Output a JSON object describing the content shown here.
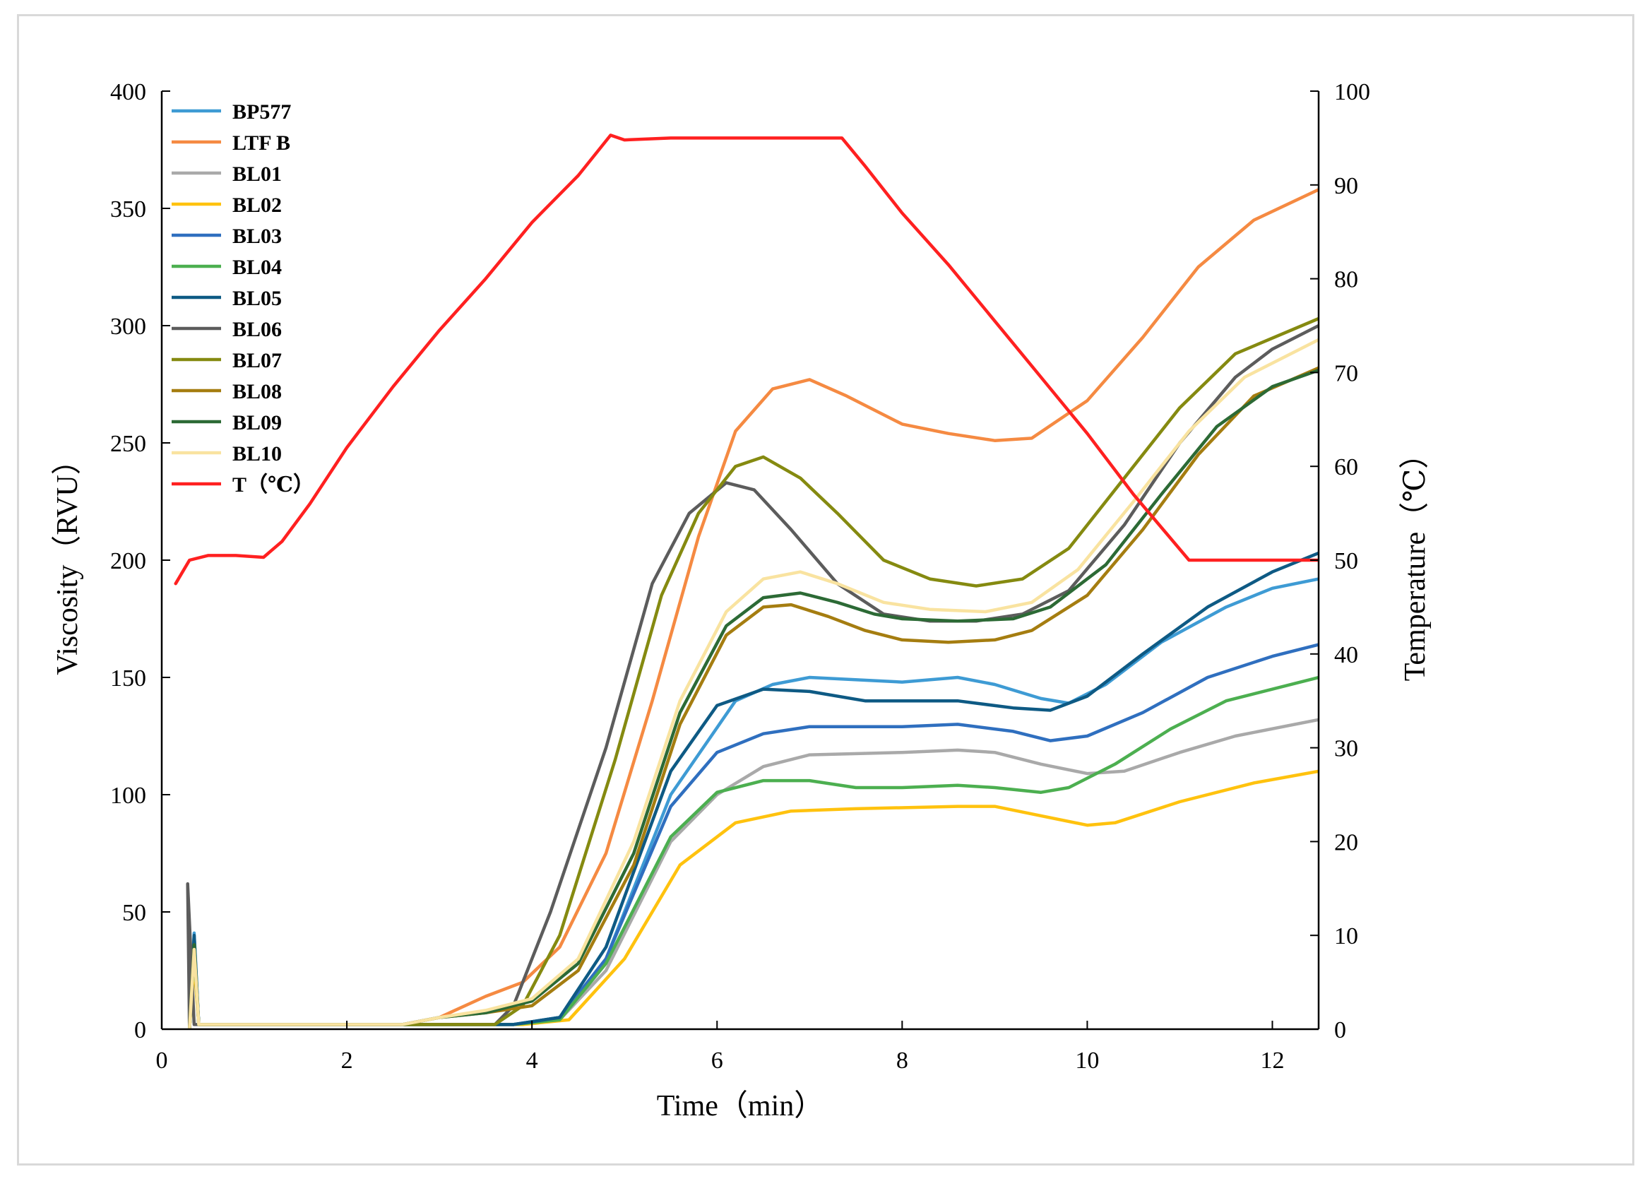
{
  "chart_data": {
    "type": "line",
    "xlabel": "Time（min）",
    "ylabel_left": "Viscosity（RVU）",
    "ylabel_right": "Temperature（℃）",
    "xlim": [
      0,
      12.5
    ],
    "ylim_left": [
      0,
      400
    ],
    "ylim_right": [
      0,
      100
    ],
    "x_ticks": [
      "0",
      "2",
      "4",
      "6",
      "8",
      "10",
      "12"
    ],
    "y_left_ticks": [
      "0",
      "50",
      "100",
      "150",
      "200",
      "250",
      "300",
      "350",
      "400"
    ],
    "y_right_ticks": [
      "0",
      "10",
      "20",
      "30",
      "40",
      "50",
      "60",
      "70",
      "80",
      "90",
      "100"
    ],
    "grid": false,
    "legend_position": "top-left",
    "series": [
      {
        "name": "BP577",
        "color": "#3e9bd4",
        "axis": "left",
        "points": [
          [
            0.3,
            0
          ],
          [
            0.35,
            41
          ],
          [
            0.4,
            2
          ],
          [
            3.8,
            2
          ],
          [
            4.3,
            5
          ],
          [
            4.8,
            30
          ],
          [
            5.5,
            100
          ],
          [
            6.2,
            140
          ],
          [
            6.6,
            147
          ],
          [
            7,
            150
          ],
          [
            8,
            148
          ],
          [
            8.6,
            150
          ],
          [
            9,
            147
          ],
          [
            9.5,
            141
          ],
          [
            9.8,
            139
          ],
          [
            10.2,
            147
          ],
          [
            10.8,
            165
          ],
          [
            11.5,
            180
          ],
          [
            12,
            188
          ],
          [
            12.5,
            192
          ]
        ]
      },
      {
        "name": "LTF B",
        "color": "#f58a42",
        "axis": "left",
        "points": [
          [
            0.3,
            0
          ],
          [
            0.35,
            35
          ],
          [
            0.4,
            2
          ],
          [
            2.6,
            2
          ],
          [
            3,
            5
          ],
          [
            3.5,
            14
          ],
          [
            3.9,
            20
          ],
          [
            4.3,
            35
          ],
          [
            4.8,
            75
          ],
          [
            5.3,
            140
          ],
          [
            5.8,
            210
          ],
          [
            6.2,
            255
          ],
          [
            6.6,
            273
          ],
          [
            7,
            277
          ],
          [
            7.4,
            270
          ],
          [
            8,
            258
          ],
          [
            8.5,
            254
          ],
          [
            9,
            251
          ],
          [
            9.4,
            252
          ],
          [
            10,
            268
          ],
          [
            10.6,
            295
          ],
          [
            11.2,
            325
          ],
          [
            11.8,
            345
          ],
          [
            12.5,
            358
          ]
        ]
      },
      {
        "name": "BL01",
        "color": "#a9a9a9",
        "axis": "left",
        "points": [
          [
            0.3,
            0
          ],
          [
            0.35,
            30
          ],
          [
            0.4,
            2
          ],
          [
            3.8,
            2
          ],
          [
            4.3,
            4
          ],
          [
            4.8,
            25
          ],
          [
            5.5,
            80
          ],
          [
            6,
            100
          ],
          [
            6.5,
            112
          ],
          [
            7,
            117
          ],
          [
            8,
            118
          ],
          [
            8.6,
            119
          ],
          [
            9,
            118
          ],
          [
            9.5,
            113
          ],
          [
            10,
            109
          ],
          [
            10.4,
            110
          ],
          [
            11,
            118
          ],
          [
            11.6,
            125
          ],
          [
            12.5,
            132
          ]
        ]
      },
      {
        "name": "BL02",
        "color": "#ffc20e",
        "axis": "left",
        "points": [
          [
            0.3,
            0
          ],
          [
            0.35,
            28
          ],
          [
            0.4,
            2
          ],
          [
            3.9,
            2
          ],
          [
            4.4,
            4
          ],
          [
            5,
            30
          ],
          [
            5.6,
            70
          ],
          [
            6.2,
            88
          ],
          [
            6.8,
            93
          ],
          [
            7.5,
            94
          ],
          [
            8.6,
            95
          ],
          [
            9,
            95
          ],
          [
            9.5,
            91
          ],
          [
            10,
            87
          ],
          [
            10.3,
            88
          ],
          [
            11,
            97
          ],
          [
            11.8,
            105
          ],
          [
            12.5,
            110
          ]
        ]
      },
      {
        "name": "BL03",
        "color": "#2f6fbf",
        "axis": "left",
        "points": [
          [
            0.3,
            0
          ],
          [
            0.35,
            38
          ],
          [
            0.4,
            2
          ],
          [
            3.8,
            2
          ],
          [
            4.3,
            5
          ],
          [
            4.8,
            30
          ],
          [
            5.5,
            95
          ],
          [
            6,
            118
          ],
          [
            6.5,
            126
          ],
          [
            7,
            129
          ],
          [
            8,
            129
          ],
          [
            8.6,
            130
          ],
          [
            9.2,
            127
          ],
          [
            9.6,
            123
          ],
          [
            10,
            125
          ],
          [
            10.6,
            135
          ],
          [
            11.3,
            150
          ],
          [
            12,
            159
          ],
          [
            12.5,
            164
          ]
        ]
      },
      {
        "name": "BL04",
        "color": "#4caf50",
        "axis": "left",
        "points": [
          [
            0.3,
            0
          ],
          [
            0.35,
            33
          ],
          [
            0.4,
            2
          ],
          [
            3.8,
            2
          ],
          [
            4.3,
            4
          ],
          [
            4.8,
            28
          ],
          [
            5.5,
            82
          ],
          [
            6,
            101
          ],
          [
            6.5,
            106
          ],
          [
            7,
            106
          ],
          [
            7.5,
            103
          ],
          [
            8,
            103
          ],
          [
            8.6,
            104
          ],
          [
            9,
            103
          ],
          [
            9.5,
            101
          ],
          [
            9.8,
            103
          ],
          [
            10.3,
            113
          ],
          [
            10.9,
            128
          ],
          [
            11.5,
            140
          ],
          [
            12.5,
            150
          ]
        ]
      },
      {
        "name": "BL05",
        "color": "#0e5a84",
        "axis": "left",
        "points": [
          [
            0.3,
            0
          ],
          [
            0.35,
            40
          ],
          [
            0.4,
            2
          ],
          [
            3.8,
            2
          ],
          [
            4.3,
            5
          ],
          [
            4.8,
            35
          ],
          [
            5.5,
            110
          ],
          [
            6,
            138
          ],
          [
            6.5,
            145
          ],
          [
            7,
            144
          ],
          [
            7.6,
            140
          ],
          [
            8,
            140
          ],
          [
            8.6,
            140
          ],
          [
            9.2,
            137
          ],
          [
            9.6,
            136
          ],
          [
            10,
            142
          ],
          [
            10.6,
            160
          ],
          [
            11.3,
            180
          ],
          [
            12,
            195
          ],
          [
            12.5,
            203
          ]
        ]
      },
      {
        "name": "BL06",
        "color": "#5c5c5c",
        "axis": "left",
        "points": [
          [
            0.3,
            0
          ],
          [
            0.28,
            62
          ],
          [
            0.35,
            2
          ],
          [
            3.6,
            2
          ],
          [
            3.8,
            10
          ],
          [
            4.2,
            50
          ],
          [
            4.8,
            120
          ],
          [
            5.3,
            190
          ],
          [
            5.7,
            220
          ],
          [
            6.1,
            233
          ],
          [
            6.4,
            230
          ],
          [
            6.8,
            213
          ],
          [
            7.3,
            190
          ],
          [
            7.8,
            177
          ],
          [
            8.3,
            174
          ],
          [
            8.8,
            174
          ],
          [
            9.3,
            177
          ],
          [
            9.8,
            187
          ],
          [
            10.4,
            215
          ],
          [
            11,
            250
          ],
          [
            11.6,
            278
          ],
          [
            12,
            290
          ],
          [
            12.5,
            300
          ]
        ]
      },
      {
        "name": "BL07",
        "color": "#858a10",
        "axis": "left",
        "points": [
          [
            0.3,
            0
          ],
          [
            0.35,
            36
          ],
          [
            0.4,
            2
          ],
          [
            3.6,
            2
          ],
          [
            3.9,
            10
          ],
          [
            4.3,
            40
          ],
          [
            4.9,
            115
          ],
          [
            5.4,
            185
          ],
          [
            5.8,
            220
          ],
          [
            6.2,
            240
          ],
          [
            6.5,
            244
          ],
          [
            6.9,
            235
          ],
          [
            7.3,
            220
          ],
          [
            7.8,
            200
          ],
          [
            8.3,
            192
          ],
          [
            8.8,
            189
          ],
          [
            9.3,
            192
          ],
          [
            9.8,
            205
          ],
          [
            10.4,
            235
          ],
          [
            11,
            265
          ],
          [
            11.6,
            288
          ],
          [
            12.5,
            303
          ]
        ]
      },
      {
        "name": "BL08",
        "color": "#a57d10",
        "axis": "left",
        "points": [
          [
            0.3,
            0
          ],
          [
            0.35,
            35
          ],
          [
            0.4,
            2
          ],
          [
            2.6,
            2
          ],
          [
            3,
            5
          ],
          [
            3.5,
            7
          ],
          [
            4,
            10
          ],
          [
            4.5,
            25
          ],
          [
            5.1,
            70
          ],
          [
            5.6,
            130
          ],
          [
            6.1,
            168
          ],
          [
            6.5,
            180
          ],
          [
            6.8,
            181
          ],
          [
            7.2,
            176
          ],
          [
            7.6,
            170
          ],
          [
            8,
            166
          ],
          [
            8.5,
            165
          ],
          [
            9,
            166
          ],
          [
            9.4,
            170
          ],
          [
            10,
            185
          ],
          [
            10.6,
            213
          ],
          [
            11.2,
            245
          ],
          [
            11.8,
            270
          ],
          [
            12.5,
            282
          ]
        ]
      },
      {
        "name": "BL09",
        "color": "#2c6a35",
        "axis": "left",
        "points": [
          [
            0.3,
            0
          ],
          [
            0.35,
            36
          ],
          [
            0.4,
            2
          ],
          [
            2.6,
            2
          ],
          [
            3,
            5
          ],
          [
            3.5,
            7
          ],
          [
            4,
            12
          ],
          [
            4.5,
            28
          ],
          [
            5.1,
            75
          ],
          [
            5.6,
            135
          ],
          [
            6.1,
            172
          ],
          [
            6.5,
            184
          ],
          [
            6.9,
            186
          ],
          [
            7.3,
            182
          ],
          [
            7.7,
            177
          ],
          [
            8,
            175
          ],
          [
            8.6,
            174
          ],
          [
            9.2,
            175
          ],
          [
            9.6,
            180
          ],
          [
            10.2,
            198
          ],
          [
            10.8,
            228
          ],
          [
            11.4,
            257
          ],
          [
            12,
            274
          ],
          [
            12.5,
            281
          ]
        ]
      },
      {
        "name": "BL10",
        "color": "#f9e3a0",
        "axis": "left",
        "points": [
          [
            0.3,
            0
          ],
          [
            0.35,
            34
          ],
          [
            0.4,
            2
          ],
          [
            2.6,
            2
          ],
          [
            3,
            5
          ],
          [
            3.5,
            8
          ],
          [
            4,
            13
          ],
          [
            4.5,
            30
          ],
          [
            5.1,
            80
          ],
          [
            5.6,
            140
          ],
          [
            6.1,
            178
          ],
          [
            6.5,
            192
          ],
          [
            6.9,
            195
          ],
          [
            7.3,
            190
          ],
          [
            7.8,
            182
          ],
          [
            8.3,
            179
          ],
          [
            8.9,
            178
          ],
          [
            9.4,
            182
          ],
          [
            9.9,
            196
          ],
          [
            10.5,
            225
          ],
          [
            11.1,
            255
          ],
          [
            11.7,
            278
          ],
          [
            12.5,
            294
          ]
        ]
      },
      {
        "name": "T（℃）",
        "color": "#ff2020",
        "axis": "right",
        "points": [
          [
            0.15,
            47.5
          ],
          [
            0.3,
            50
          ],
          [
            0.5,
            50.5
          ],
          [
            0.8,
            50.5
          ],
          [
            1.1,
            50.3
          ],
          [
            1.3,
            52
          ],
          [
            1.6,
            56
          ],
          [
            2,
            62
          ],
          [
            2.5,
            68.5
          ],
          [
            3,
            74.5
          ],
          [
            3.5,
            80
          ],
          [
            4,
            86
          ],
          [
            4.5,
            91
          ],
          [
            4.85,
            95.3
          ],
          [
            5,
            94.8
          ],
          [
            5.5,
            95
          ],
          [
            6,
            95
          ],
          [
            6.5,
            95
          ],
          [
            7,
            95
          ],
          [
            7.35,
            95
          ],
          [
            7.6,
            92
          ],
          [
            8,
            87
          ],
          [
            8.5,
            81.5
          ],
          [
            9,
            75.5
          ],
          [
            9.5,
            69.5
          ],
          [
            10,
            63.5
          ],
          [
            10.5,
            57
          ],
          [
            11.1,
            50
          ],
          [
            11.5,
            50
          ],
          [
            12,
            50
          ],
          [
            12.5,
            50
          ]
        ]
      }
    ]
  }
}
